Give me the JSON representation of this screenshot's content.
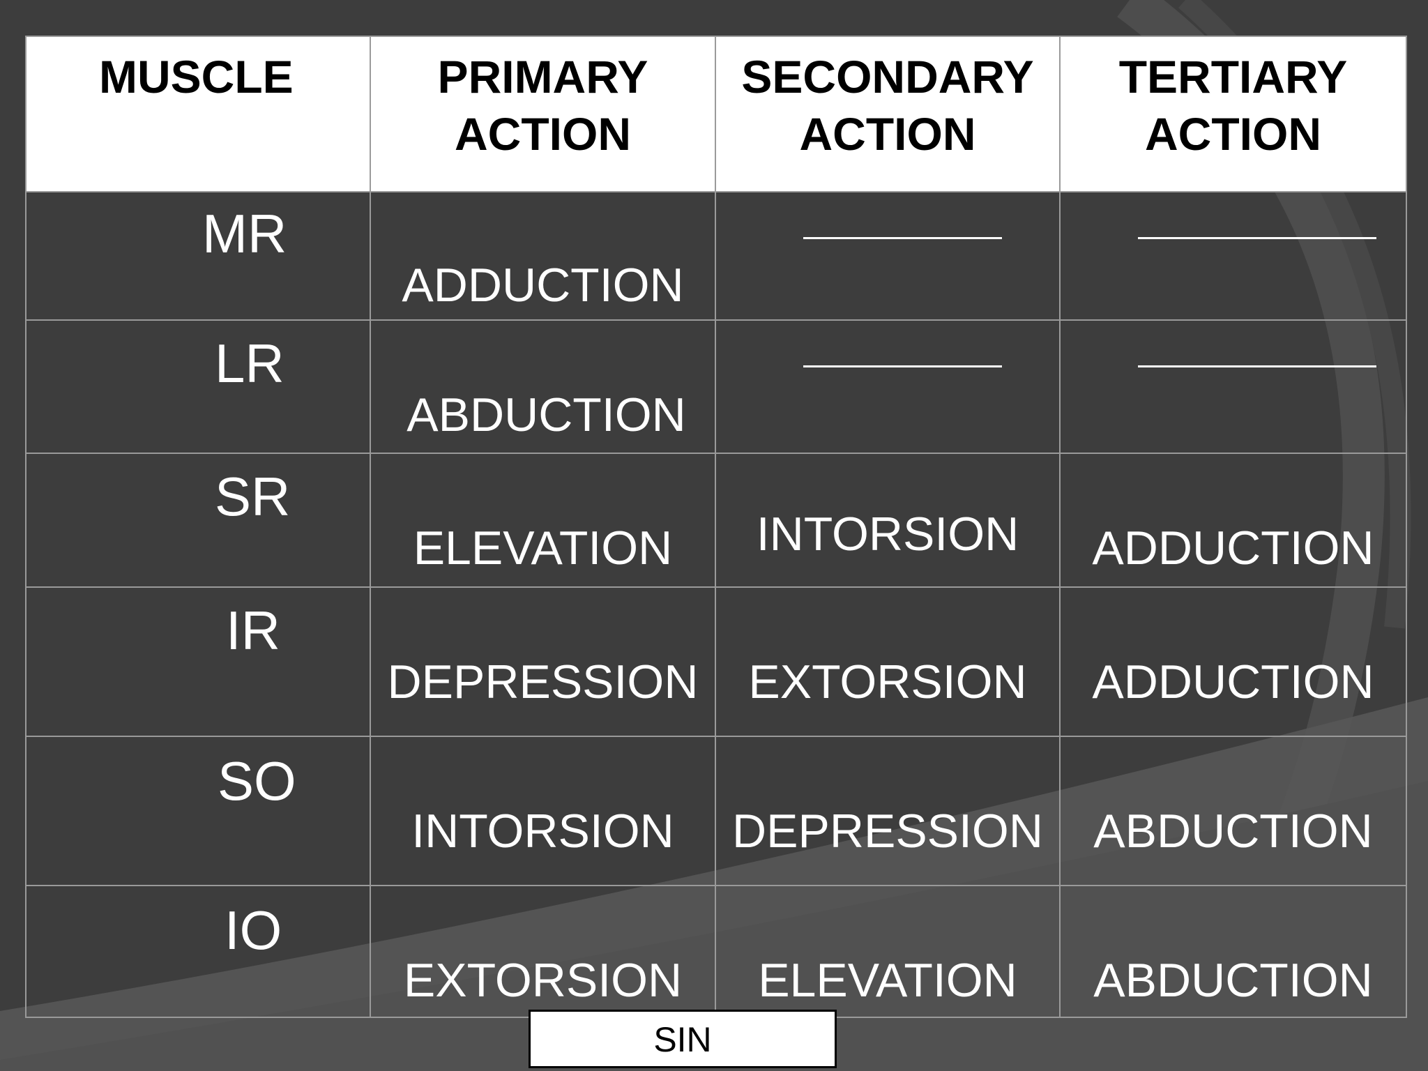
{
  "table": {
    "headers": {
      "muscle": "MUSCLE",
      "primary": [
        "PRIMARY",
        "ACTION"
      ],
      "secondary": [
        "SECONDARY",
        "ACTION"
      ],
      "tertiary": [
        "TERTIARY",
        "ACTION"
      ]
    },
    "rows": [
      {
        "muscle": "MR",
        "primary": "ADDUCTION",
        "secondary": "",
        "tertiary": ""
      },
      {
        "muscle": "LR",
        "primary": "ABDUCTION",
        "secondary": "",
        "tertiary": ""
      },
      {
        "muscle": "SR",
        "primary": "ELEVATION",
        "secondary": "INTORSION",
        "tertiary": "ADDUCTION"
      },
      {
        "muscle": "IR",
        "primary": "DEPRESSION",
        "secondary": "EXTORSION",
        "tertiary": "ADDUCTION"
      },
      {
        "muscle": "SO",
        "primary": "INTORSION",
        "secondary": "DEPRESSION",
        "tertiary": "ABDUCTION"
      },
      {
        "muscle": "IO",
        "primary": "EXTORSION",
        "secondary": "ELEVATION",
        "tertiary": "ABDUCTION"
      }
    ]
  },
  "footer": {
    "label": "SIN"
  },
  "colors": {
    "background": "#3d3d3d",
    "header_bg": "#ffffff",
    "text": "#ffffff",
    "grid": "#9a9a9a"
  }
}
